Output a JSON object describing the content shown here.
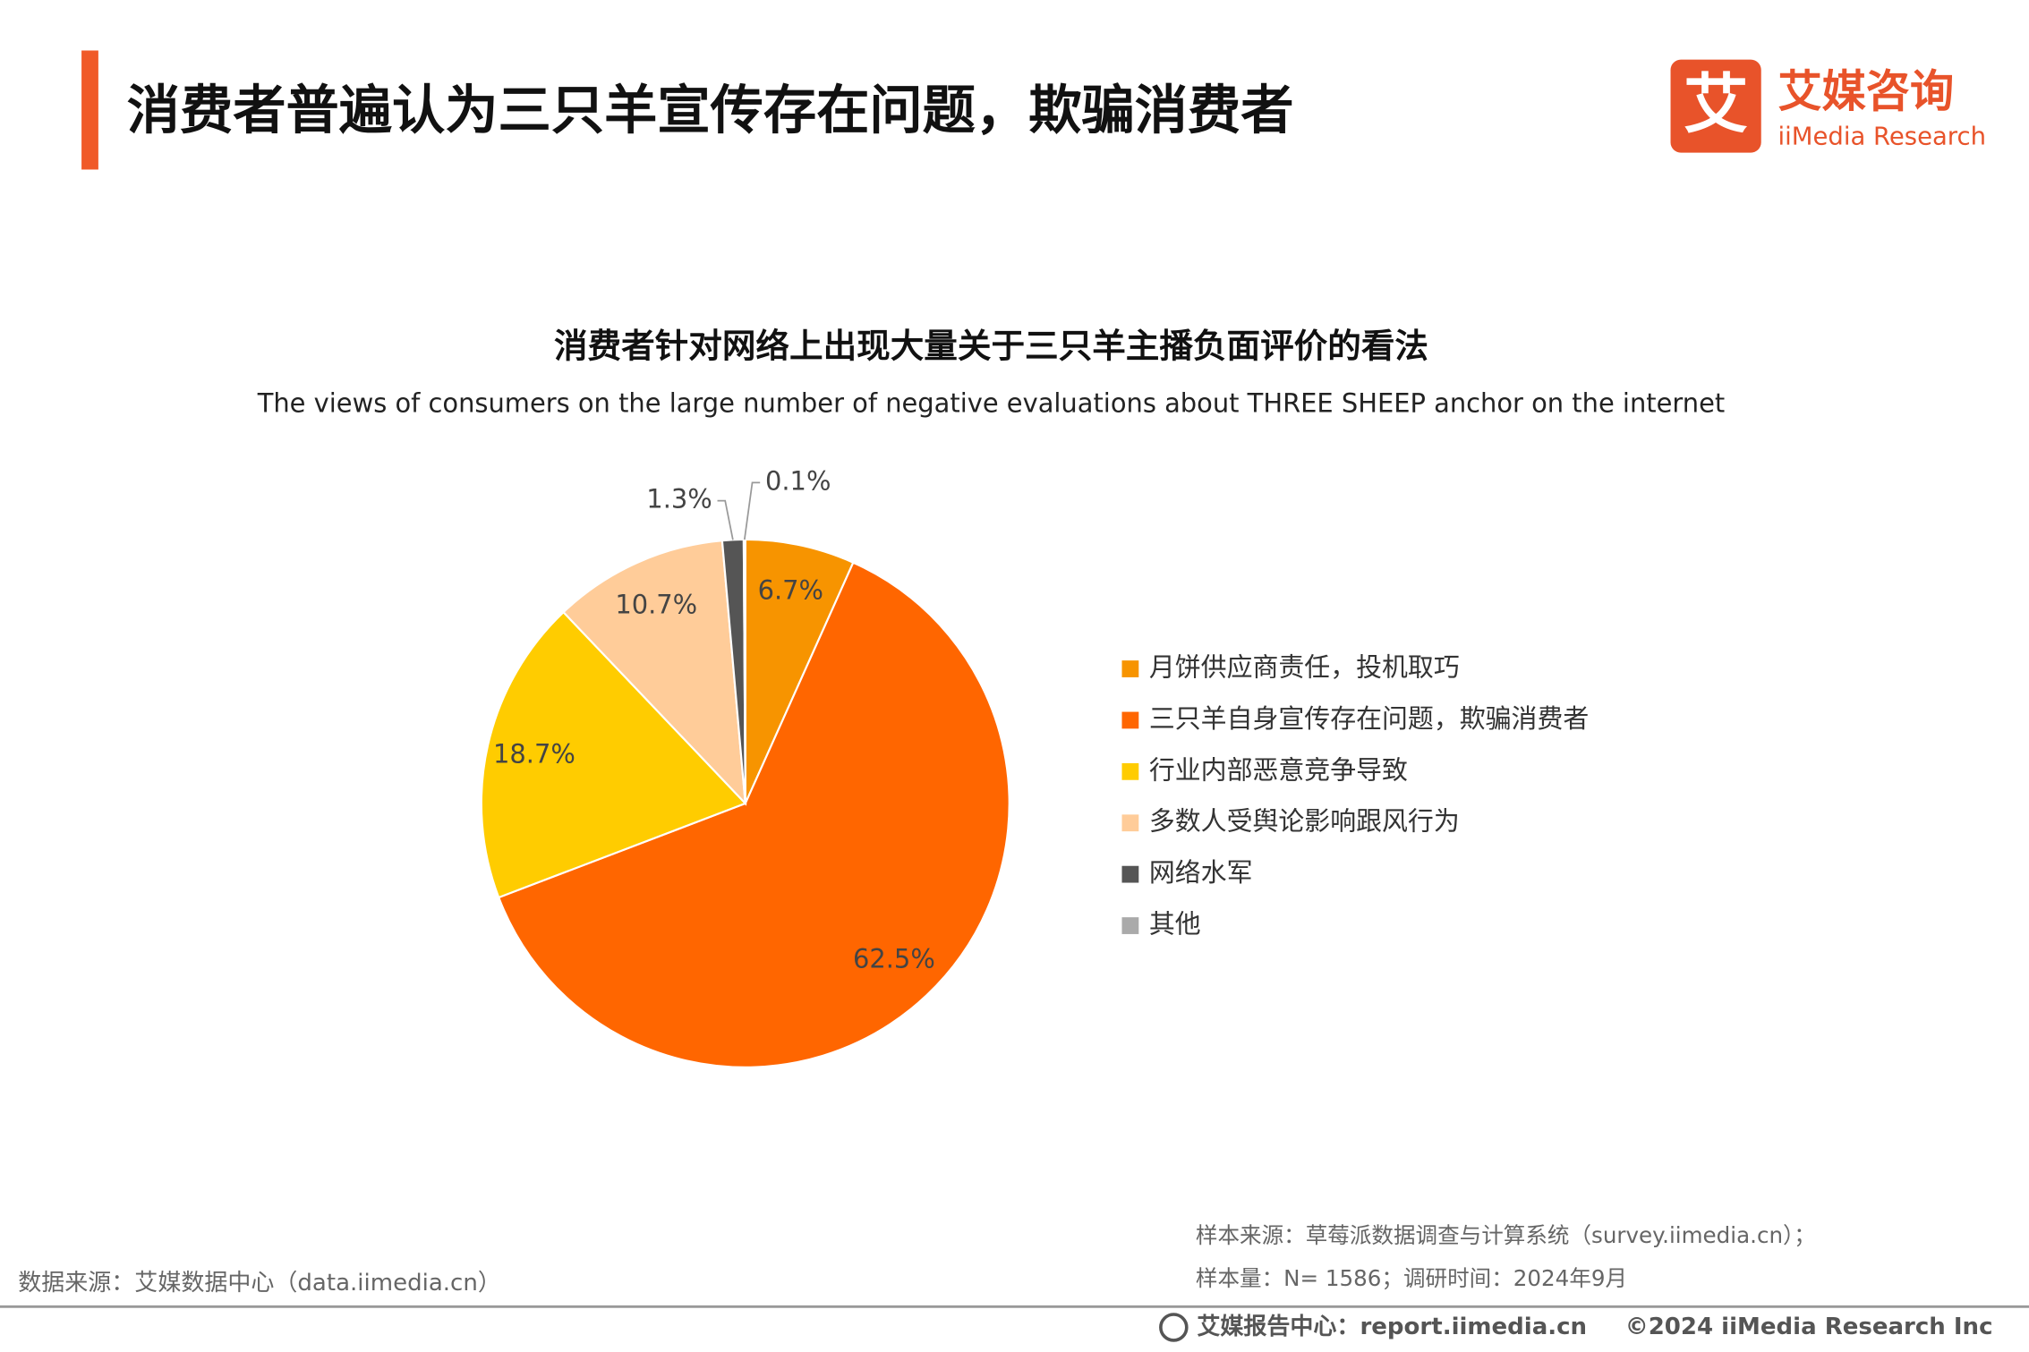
{
  "header": {
    "title": "消费者普遍认为三只羊宣传存在问题，欺骗消费者",
    "logo_mark": "艾",
    "logo_name": "艾媒咨询",
    "logo_en": "iiMedia Research"
  },
  "chart_data": {
    "type": "pie",
    "title": "消费者针对网络上出现大量关于三只羊主播负面评价的看法",
    "subtitle": "The views of consumers on the large number of negative evaluations about THREE SHEEP  anchor on the internet",
    "categories": [
      "月饼供应商责任，投机取巧",
      "三只羊自身宣传存在问题，欺骗消费者",
      "行业内部恶意竞争导致",
      "多数人受舆论影响跟风行为",
      "网络水军",
      "其他"
    ],
    "values": [
      6.7,
      62.5,
      18.7,
      10.7,
      1.3,
      0.1
    ],
    "value_labels": [
      "6.7%",
      "62.5%",
      "18.7%",
      "10.7%",
      "1.3%",
      "0.1%"
    ],
    "colors": [
      "#f79400",
      "#ff6600",
      "#ffcc00",
      "#ffcc99",
      "#555555",
      "#aaaaaa"
    ]
  },
  "footer": {
    "data_source": "数据来源：艾媒数据中心（data.iimedia.cn）",
    "sample_source": "样本来源：草莓派数据调查与计算系统（survey.iimedia.cn）；",
    "sample_size": "样本量：N= 1586；调研时间：2024年9月",
    "report_center": "艾媒报告中心：report.iimedia.cn",
    "copyright": "©2024  iiMedia Research  Inc"
  }
}
